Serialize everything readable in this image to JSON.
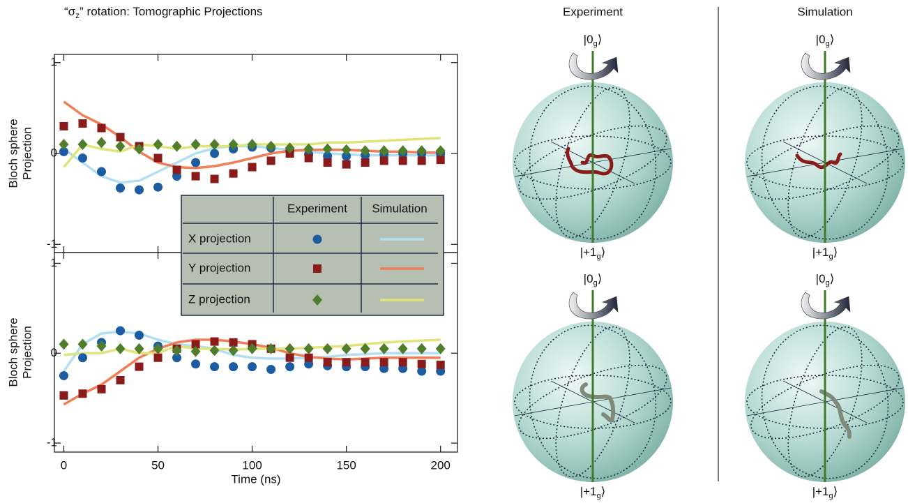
{
  "title": {
    "pre": "“σ",
    "sub": "z",
    "post": "” rotation: Tomographic Projections"
  },
  "legend": {
    "columns": [
      "Experiment",
      "Simulation"
    ],
    "rows": [
      "X projection",
      "Y projection",
      "Z projection"
    ],
    "experiment_colors": [
      "#1c5ca3",
      "#8b1a1a",
      "#4f7d2c"
    ],
    "markers": [
      "circle",
      "square",
      "diamond"
    ],
    "simulation_colors": [
      "#b3dff2",
      "#f07d55",
      "#dfe57a"
    ]
  },
  "spheres": {
    "columns": [
      "Experiment",
      "Simulation"
    ],
    "top_ket": {
      "main": "0",
      "sub": "g"
    },
    "bottom_ket": {
      "main": "+1",
      "sub": "g"
    }
  },
  "chart_data": [
    {
      "type": "line",
      "y_label": [
        "Bloch sphere",
        "Projection"
      ],
      "x": [
        0,
        10,
        20,
        30,
        40,
        50,
        60,
        70,
        80,
        90,
        100,
        110,
        120,
        130,
        140,
        150,
        160,
        170,
        180,
        190,
        200
      ],
      "xlim": [
        -5,
        209
      ],
      "xticks": [
        0,
        50,
        100,
        150,
        200
      ],
      "ylim": [
        -1.09,
        1.09
      ],
      "yticks": [
        1,
        0,
        -1
      ],
      "experiment": [
        {
          "values": [
            0.02,
            -0.05,
            -0.2,
            -0.38,
            -0.4,
            -0.37,
            -0.25,
            -0.1,
            0.0,
            0.05,
            0.07,
            0.06,
            0.03,
            -0.01,
            -0.03,
            -0.03,
            -0.02,
            -0.01,
            0.0,
            0.0,
            0.0
          ]
        },
        {
          "values": [
            0.3,
            0.33,
            0.28,
            0.18,
            0.08,
            -0.05,
            -0.18,
            -0.25,
            -0.28,
            -0.22,
            -0.15,
            -0.08,
            0.0,
            -0.05,
            -0.1,
            -0.12,
            -0.1,
            -0.08,
            -0.08,
            -0.08,
            -0.07
          ]
        },
        {
          "values": [
            0.1,
            0.1,
            0.12,
            0.08,
            0.05,
            0.1,
            0.08,
            0.1,
            0.1,
            0.1,
            0.1,
            0.08,
            0.06,
            0.05,
            0.05,
            0.04,
            0.03,
            0.03,
            0.03,
            0.03,
            0.03
          ]
        }
      ],
      "simulation": [
        {
          "values": [
            0.05,
            -0.1,
            -0.25,
            -0.32,
            -0.3,
            -0.2,
            -0.1,
            0.0,
            0.06,
            0.08,
            0.08,
            0.06,
            0.04,
            0.02,
            0.0,
            -0.01,
            -0.02,
            -0.02,
            -0.02,
            -0.02,
            -0.02
          ]
        },
        {
          "values": [
            0.57,
            0.42,
            0.32,
            0.18,
            0.02,
            -0.1,
            -0.15,
            -0.16,
            -0.14,
            -0.1,
            -0.05,
            0.0,
            0.03,
            0.04,
            0.04,
            0.04,
            0.03,
            0.02,
            0.02,
            0.01,
            0.01
          ]
        },
        {
          "values": [
            -0.15,
            0.1,
            0.05,
            0.02,
            0.1,
            0.08,
            0.05,
            0.08,
            0.08,
            0.08,
            0.1,
            0.1,
            0.1,
            0.1,
            0.12,
            0.12,
            0.13,
            0.14,
            0.15,
            0.16,
            0.17
          ]
        }
      ]
    },
    {
      "type": "line",
      "y_label": [
        "Bloch sphere",
        "Projection"
      ],
      "x_label": "Time (ns)",
      "x": [
        0,
        10,
        20,
        30,
        40,
        50,
        60,
        70,
        80,
        90,
        100,
        110,
        120,
        130,
        140,
        150,
        160,
        170,
        180,
        190,
        200
      ],
      "xlim": [
        -5,
        209
      ],
      "xticks": [
        0,
        50,
        100,
        150,
        200
      ],
      "ylim": [
        -1.1,
        1.12
      ],
      "yticks": [
        1,
        0,
        -1
      ],
      "experiment": [
        {
          "values": [
            -0.25,
            -0.05,
            0.12,
            0.25,
            0.2,
            0.08,
            -0.05,
            -0.12,
            -0.15,
            -0.15,
            -0.15,
            -0.18,
            -0.15,
            -0.12,
            -0.14,
            -0.15,
            -0.15,
            -0.17,
            -0.17,
            -0.2,
            -0.2
          ]
        },
        {
          "values": [
            -0.47,
            -0.45,
            -0.4,
            -0.3,
            -0.15,
            -0.05,
            0.05,
            0.1,
            0.13,
            0.12,
            0.1,
            0.05,
            -0.05,
            -0.05,
            -0.1,
            -0.1,
            -0.1,
            -0.1,
            -0.1,
            -0.12,
            -0.13
          ]
        },
        {
          "values": [
            0.1,
            0.1,
            0.08,
            0.05,
            0.05,
            0.05,
            0.03,
            0.02,
            0.03,
            0.03,
            0.05,
            0.05,
            0.05,
            0.05,
            0.05,
            0.05,
            0.05,
            0.05,
            0.05,
            0.05,
            0.05
          ]
        }
      ],
      "simulation": [
        {
          "values": [
            -0.2,
            0.1,
            0.22,
            0.24,
            0.22,
            0.15,
            0.1,
            0.08,
            0.05,
            -0.02,
            -0.05,
            -0.06,
            -0.06,
            -0.05,
            -0.04,
            -0.02,
            -0.01,
            0.0,
            0.0,
            0.0,
            0.0
          ]
        },
        {
          "values": [
            -0.57,
            -0.45,
            -0.35,
            -0.2,
            -0.05,
            0.05,
            0.12,
            0.15,
            0.15,
            0.13,
            0.1,
            0.06,
            0.0,
            -0.04,
            -0.06,
            -0.07,
            -0.06,
            -0.05,
            -0.05,
            -0.05,
            -0.05
          ]
        },
        {
          "values": [
            -0.02,
            0.0,
            0.0,
            0.05,
            0.0,
            0.0,
            0.08,
            0.05,
            0.05,
            0.04,
            0.05,
            0.05,
            0.05,
            0.06,
            0.07,
            0.08,
            0.1,
            0.12,
            0.13,
            0.14,
            0.15
          ]
        }
      ]
    }
  ]
}
